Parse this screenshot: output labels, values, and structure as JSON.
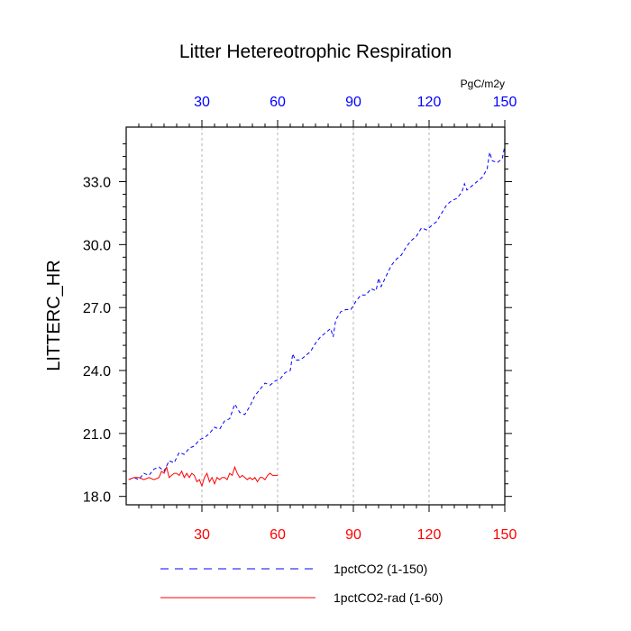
{
  "chart_data": {
    "type": "line",
    "title": "Litter Hetereotrophic Respiration",
    "ylabel": "LITTERC_HR",
    "top_axis_unit": "PgC/m2y",
    "xlim": [
      0,
      150
    ],
    "ylim": [
      17.6,
      35.6
    ],
    "x_ticks": [
      30,
      60,
      90,
      120,
      150
    ],
    "x_tick_labels": [
      "30",
      "60",
      "90",
      "120",
      "150"
    ],
    "y_ticks": [
      18.0,
      21.0,
      24.0,
      27.0,
      30.0,
      33.0
    ],
    "y_tick_labels": [
      "18.0",
      "21.0",
      "24.0",
      "27.0",
      "30.0",
      "33.0"
    ],
    "grid": "vertical-dashed",
    "colors": {
      "bottom_tick_labels": "#ff0000",
      "top_tick_labels": "#0000ff",
      "grid": "#b4b4b4",
      "axis": "#000000"
    },
    "series": [
      {
        "name": "1pctCO2 (1-150)",
        "color": "#0000ff",
        "style": "dashed",
        "points": [
          [
            1,
            18.8
          ],
          [
            3,
            18.9
          ],
          [
            5,
            18.8
          ],
          [
            7,
            19.1
          ],
          [
            9,
            19.0
          ],
          [
            11,
            19.3
          ],
          [
            13,
            19.4
          ],
          [
            15,
            19.2
          ],
          [
            17,
            19.7
          ],
          [
            19,
            19.6
          ],
          [
            21,
            20.1
          ],
          [
            23,
            20.0
          ],
          [
            25,
            20.3
          ],
          [
            27,
            20.4
          ],
          [
            29,
            20.7
          ],
          [
            31,
            20.8
          ],
          [
            33,
            21.0
          ],
          [
            35,
            21.3
          ],
          [
            37,
            21.2
          ],
          [
            39,
            21.6
          ],
          [
            41,
            21.7
          ],
          [
            43,
            22.4
          ],
          [
            45,
            22.0
          ],
          [
            47,
            21.9
          ],
          [
            49,
            22.3
          ],
          [
            51,
            22.8
          ],
          [
            53,
            23.1
          ],
          [
            55,
            23.4
          ],
          [
            57,
            23.3
          ],
          [
            59,
            23.5
          ],
          [
            61,
            23.6
          ],
          [
            63,
            23.9
          ],
          [
            65,
            24.0
          ],
          [
            66,
            24.8
          ],
          [
            67,
            24.5
          ],
          [
            69,
            24.5
          ],
          [
            71,
            24.7
          ],
          [
            73,
            24.9
          ],
          [
            75,
            25.3
          ],
          [
            77,
            25.6
          ],
          [
            79,
            25.8
          ],
          [
            81,
            26.0
          ],
          [
            82,
            25.6
          ],
          [
            83,
            26.4
          ],
          [
            85,
            26.8
          ],
          [
            87,
            26.9
          ],
          [
            89,
            26.9
          ],
          [
            91,
            27.3
          ],
          [
            93,
            27.6
          ],
          [
            95,
            27.6
          ],
          [
            97,
            27.9
          ],
          [
            99,
            27.8
          ],
          [
            100,
            28.4
          ],
          [
            101,
            28.0
          ],
          [
            103,
            28.5
          ],
          [
            105,
            29.0
          ],
          [
            107,
            29.3
          ],
          [
            109,
            29.5
          ],
          [
            111,
            29.9
          ],
          [
            113,
            30.2
          ],
          [
            115,
            30.4
          ],
          [
            117,
            30.8
          ],
          [
            119,
            30.7
          ],
          [
            121,
            30.9
          ],
          [
            123,
            31.1
          ],
          [
            125,
            31.5
          ],
          [
            127,
            31.9
          ],
          [
            129,
            32.1
          ],
          [
            131,
            32.2
          ],
          [
            133,
            32.5
          ],
          [
            134,
            32.9
          ],
          [
            135,
            32.6
          ],
          [
            137,
            32.8
          ],
          [
            139,
            33.0
          ],
          [
            141,
            33.2
          ],
          [
            143,
            33.6
          ],
          [
            144,
            34.4
          ],
          [
            145,
            34.0
          ],
          [
            147,
            33.9
          ],
          [
            149,
            34.1
          ],
          [
            150,
            34.7
          ]
        ]
      },
      {
        "name": "1pctCO2-rad (1-60)",
        "color": "#ff0000",
        "style": "solid",
        "points": [
          [
            1,
            18.8
          ],
          [
            3,
            18.9
          ],
          [
            5,
            18.9
          ],
          [
            7,
            18.8
          ],
          [
            9,
            18.9
          ],
          [
            11,
            18.8
          ],
          [
            13,
            18.9
          ],
          [
            14,
            19.2
          ],
          [
            15,
            19.1
          ],
          [
            16,
            19.4
          ],
          [
            17,
            18.9
          ],
          [
            18,
            19.0
          ],
          [
            19,
            19.1
          ],
          [
            20,
            19.1
          ],
          [
            21,
            19.0
          ],
          [
            22,
            19.2
          ],
          [
            23,
            18.9
          ],
          [
            24,
            19.1
          ],
          [
            25,
            18.9
          ],
          [
            26,
            19.1
          ],
          [
            27,
            19.0
          ],
          [
            28,
            18.7
          ],
          [
            29,
            18.8
          ],
          [
            30,
            18.5
          ],
          [
            31,
            18.9
          ],
          [
            32,
            19.1
          ],
          [
            33,
            18.7
          ],
          [
            34,
            18.9
          ],
          [
            35,
            18.6
          ],
          [
            36,
            18.9
          ],
          [
            37,
            18.8
          ],
          [
            38,
            18.9
          ],
          [
            39,
            18.9
          ],
          [
            40,
            18.8
          ],
          [
            41,
            19.1
          ],
          [
            42,
            19.0
          ],
          [
            43,
            19.4
          ],
          [
            44,
            19.1
          ],
          [
            45,
            18.9
          ],
          [
            46,
            19.0
          ],
          [
            47,
            18.9
          ],
          [
            48,
            18.8
          ],
          [
            49,
            18.9
          ],
          [
            50,
            18.8
          ],
          [
            51,
            18.9
          ],
          [
            52,
            18.7
          ],
          [
            53,
            18.9
          ],
          [
            54,
            18.9
          ],
          [
            55,
            18.8
          ],
          [
            56,
            19.0
          ],
          [
            57,
            19.1
          ],
          [
            58,
            19.0
          ],
          [
            59,
            19.0
          ],
          [
            60,
            19.0
          ]
        ]
      }
    ],
    "legend": {
      "placement": "bottom",
      "entries": [
        {
          "label": "1pctCO2 (1-150)",
          "color": "#0000ff",
          "style": "dashed"
        },
        {
          "label": "1pctCO2-rad (1-60)",
          "color": "#ff0000",
          "style": "solid"
        }
      ]
    }
  }
}
